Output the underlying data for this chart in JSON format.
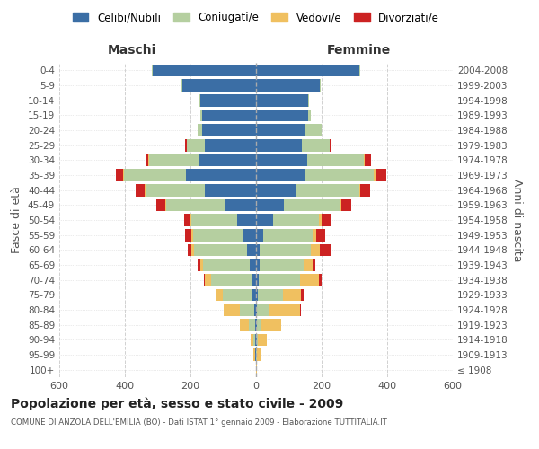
{
  "age_groups": [
    "100+",
    "95-99",
    "90-94",
    "85-89",
    "80-84",
    "75-79",
    "70-74",
    "65-69",
    "60-64",
    "55-59",
    "50-54",
    "45-49",
    "40-44",
    "35-39",
    "30-34",
    "25-29",
    "20-24",
    "15-19",
    "10-14",
    "5-9",
    "0-4"
  ],
  "birth_years": [
    "≤ 1908",
    "1909-1913",
    "1914-1918",
    "1919-1923",
    "1924-1928",
    "1929-1933",
    "1934-1938",
    "1939-1943",
    "1944-1948",
    "1949-1953",
    "1954-1958",
    "1959-1963",
    "1964-1968",
    "1969-1973",
    "1974-1978",
    "1979-1983",
    "1984-1988",
    "1989-1993",
    "1994-1998",
    "1999-2003",
    "2004-2008"
  ],
  "colors": {
    "celibi": "#3b6ea5",
    "coniugati": "#b5cfa0",
    "vedovi": "#f0c060",
    "divorziati": "#cc2222",
    "bg": "#ffffff",
    "grid": "#cccccc"
  },
  "maschi": {
    "celibi": [
      1,
      2,
      2,
      4,
      5,
      12,
      13,
      18,
      28,
      38,
      58,
      95,
      155,
      215,
      175,
      155,
      165,
      165,
      170,
      225,
      315
    ],
    "coniugati": [
      0,
      2,
      6,
      18,
      45,
      90,
      125,
      145,
      160,
      155,
      140,
      180,
      182,
      188,
      152,
      55,
      12,
      4,
      2,
      2,
      2
    ],
    "vedovi": [
      0,
      3,
      8,
      28,
      48,
      18,
      18,
      8,
      8,
      5,
      4,
      2,
      2,
      2,
      2,
      2,
      0,
      0,
      0,
      0,
      0
    ],
    "divorziati": [
      0,
      0,
      0,
      0,
      0,
      0,
      4,
      8,
      12,
      18,
      18,
      28,
      28,
      22,
      8,
      4,
      2,
      0,
      0,
      0,
      0
    ]
  },
  "femmine": {
    "celibi": [
      1,
      1,
      2,
      4,
      4,
      6,
      8,
      10,
      12,
      22,
      52,
      85,
      120,
      150,
      155,
      140,
      150,
      160,
      160,
      195,
      315
    ],
    "coniugati": [
      0,
      2,
      4,
      12,
      35,
      75,
      125,
      135,
      155,
      150,
      140,
      170,
      195,
      210,
      175,
      85,
      50,
      8,
      2,
      2,
      2
    ],
    "vedovi": [
      2,
      12,
      28,
      62,
      95,
      55,
      58,
      28,
      28,
      12,
      8,
      4,
      4,
      4,
      2,
      0,
      0,
      0,
      0,
      0,
      0
    ],
    "divorziati": [
      0,
      0,
      0,
      0,
      4,
      8,
      8,
      8,
      32,
      28,
      28,
      32,
      28,
      32,
      18,
      4,
      0,
      0,
      0,
      0,
      0
    ]
  },
  "xlim": 600,
  "title": "Popolazione per età, sesso e stato civile - 2009",
  "subtitle": "COMUNE DI ANZOLA DELL'EMILIA (BO) - Dati ISTAT 1° gennaio 2009 - Elaborazione TUTTITALIA.IT",
  "ylabel_left": "Fasce di età",
  "ylabel_right": "Anni di nascita",
  "maschi_label": "Maschi",
  "femmine_label": "Femmine"
}
